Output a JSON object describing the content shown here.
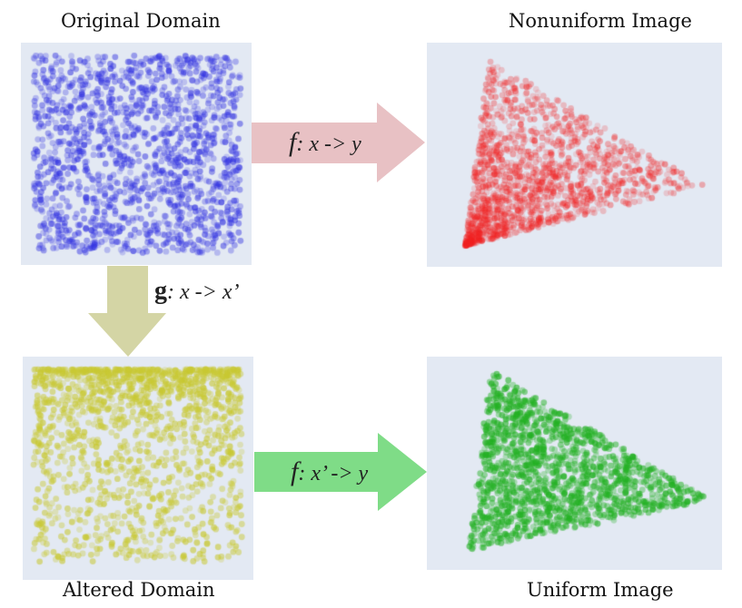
{
  "titles": {
    "original": "Original Domain",
    "nonuniform": "Nonuniform Image",
    "altered": "Altered Domain",
    "uniform": "Uniform Image"
  },
  "arrows": {
    "top": {
      "fn": "f",
      "rest": ": x -> y",
      "color": "#e8c1c4"
    },
    "down": {
      "fn": "g",
      "rest": ": x -> x’",
      "color": "#d4d5a5"
    },
    "bottom": {
      "fn": "f",
      "rest": ": x’ -> y",
      "color": "#7fdc87"
    }
  },
  "colors": {
    "panel_bg": "#e3e9f3",
    "blue": "#3030e0",
    "red": "#f02020",
    "yellow": "#c8c832",
    "green": "#22b022"
  }
}
